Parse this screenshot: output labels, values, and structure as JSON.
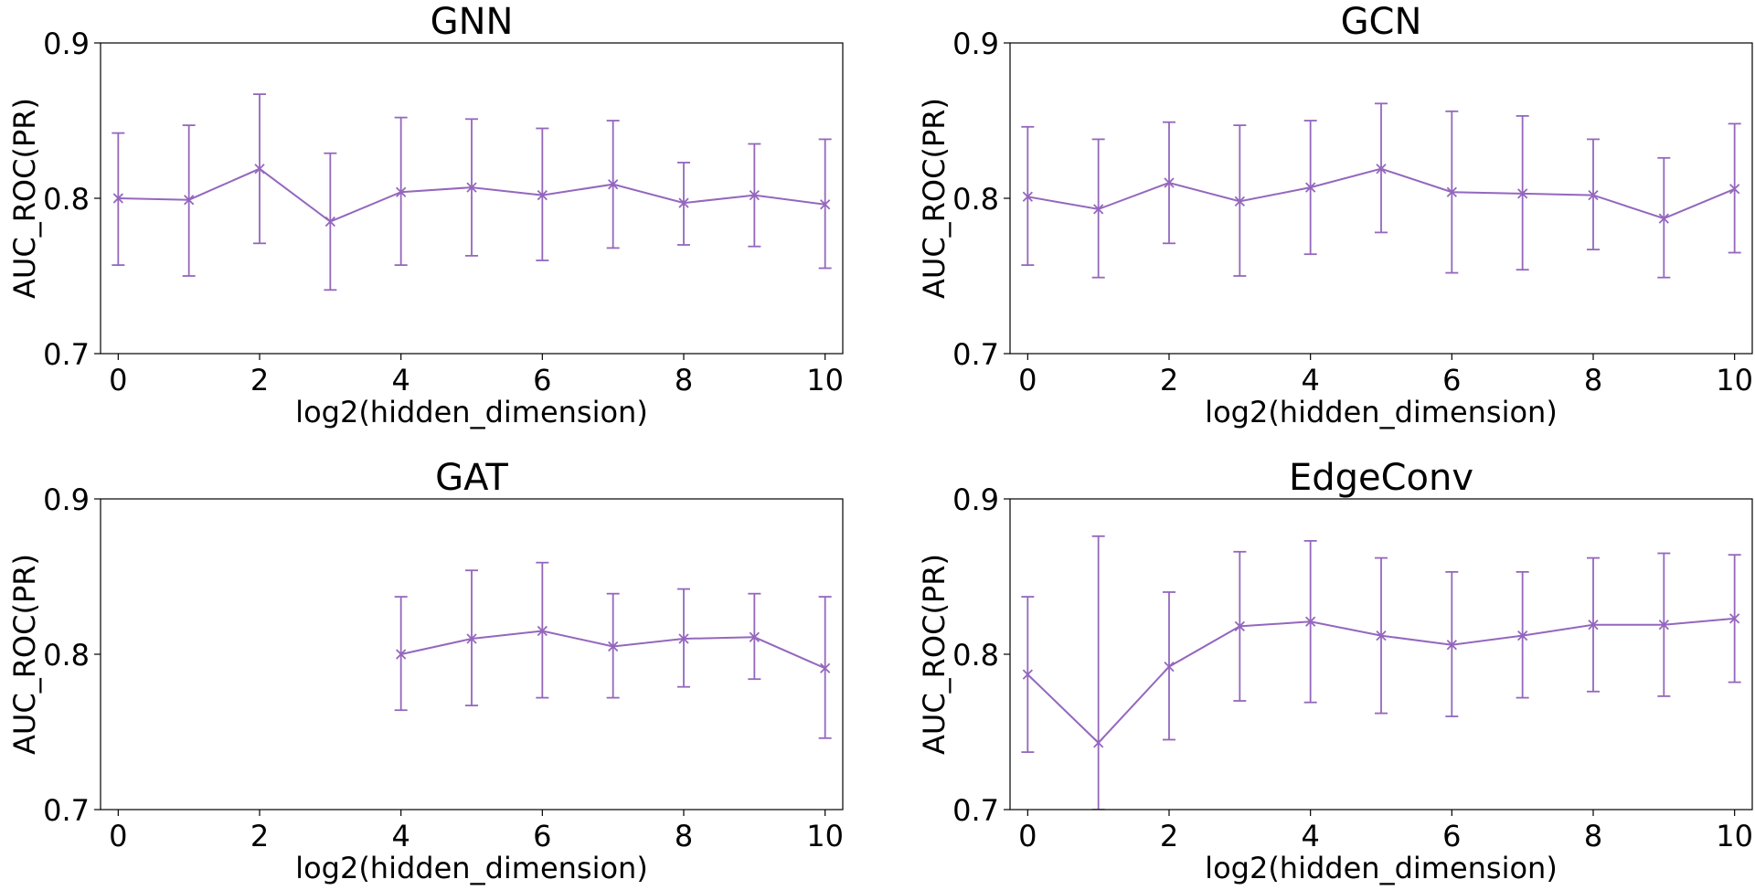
{
  "chart_data": [
    {
      "type": "line",
      "title": "GNN",
      "xlabel": "log2(hidden_dimension)",
      "ylabel": "AUC_ROC(PR)",
      "xlim": [
        -0.25,
        10.25
      ],
      "ylim": [
        0.7,
        0.9
      ],
      "xticks": [
        "0",
        "2",
        "4",
        "6",
        "8",
        "10"
      ],
      "yticks": [
        "0.7",
        "0.8",
        "0.9"
      ],
      "color": "#9467bd",
      "grid": false,
      "marker": "x",
      "x": [
        0,
        1,
        2,
        3,
        4,
        5,
        6,
        7,
        8,
        9,
        10
      ],
      "y": [
        0.8,
        0.799,
        0.819,
        0.785,
        0.804,
        0.807,
        0.802,
        0.809,
        0.797,
        0.802,
        0.796
      ],
      "err_low": [
        0.757,
        0.75,
        0.771,
        0.741,
        0.757,
        0.763,
        0.76,
        0.768,
        0.77,
        0.769,
        0.755
      ],
      "err_high": [
        0.842,
        0.847,
        0.867,
        0.829,
        0.852,
        0.851,
        0.845,
        0.85,
        0.823,
        0.835,
        0.838
      ]
    },
    {
      "type": "line",
      "title": "GCN",
      "xlabel": "log2(hidden_dimension)",
      "ylabel": "AUC_ROC(PR)",
      "xlim": [
        -0.25,
        10.25
      ],
      "ylim": [
        0.7,
        0.9
      ],
      "xticks": [
        "0",
        "2",
        "4",
        "6",
        "8",
        "10"
      ],
      "yticks": [
        "0.7",
        "0.8",
        "0.9"
      ],
      "color": "#9467bd",
      "grid": false,
      "marker": "x",
      "x": [
        0,
        1,
        2,
        3,
        4,
        5,
        6,
        7,
        8,
        9,
        10
      ],
      "y": [
        0.801,
        0.793,
        0.81,
        0.798,
        0.807,
        0.819,
        0.804,
        0.803,
        0.802,
        0.787,
        0.806
      ],
      "err_low": [
        0.757,
        0.749,
        0.771,
        0.75,
        0.764,
        0.778,
        0.752,
        0.754,
        0.767,
        0.749,
        0.765
      ],
      "err_high": [
        0.846,
        0.838,
        0.849,
        0.847,
        0.85,
        0.861,
        0.856,
        0.853,
        0.838,
        0.826,
        0.848
      ]
    },
    {
      "type": "line",
      "title": "GAT",
      "xlabel": "log2(hidden_dimension)",
      "ylabel": "AUC_ROC(PR)",
      "xlim": [
        -0.25,
        10.25
      ],
      "ylim": [
        0.7,
        0.9
      ],
      "xticks": [
        "0",
        "2",
        "4",
        "6",
        "8",
        "10"
      ],
      "yticks": [
        "0.7",
        "0.8",
        "0.9"
      ],
      "color": "#9467bd",
      "grid": false,
      "marker": "x",
      "x": [
        4,
        5,
        6,
        7,
        8,
        9,
        10
      ],
      "y": [
        0.8,
        0.81,
        0.815,
        0.805,
        0.81,
        0.811,
        0.791
      ],
      "err_low": [
        0.764,
        0.767,
        0.772,
        0.772,
        0.779,
        0.784,
        0.746
      ],
      "err_high": [
        0.837,
        0.854,
        0.859,
        0.839,
        0.842,
        0.839,
        0.837
      ]
    },
    {
      "type": "line",
      "title": "EdgeConv",
      "xlabel": "log2(hidden_dimension)",
      "ylabel": "AUC_ROC(PR)",
      "xlim": [
        -0.25,
        10.25
      ],
      "ylim": [
        0.7,
        0.9
      ],
      "xticks": [
        "0",
        "2",
        "4",
        "6",
        "8",
        "10"
      ],
      "yticks": [
        "0.7",
        "0.8",
        "0.9"
      ],
      "color": "#9467bd",
      "grid": false,
      "marker": "x",
      "x": [
        0,
        1,
        2,
        3,
        4,
        5,
        6,
        7,
        8,
        9,
        10
      ],
      "y": [
        0.787,
        0.743,
        0.792,
        0.818,
        0.821,
        0.812,
        0.806,
        0.812,
        0.819,
        0.819,
        0.823
      ],
      "err_low": [
        0.737,
        0.7,
        0.745,
        0.77,
        0.769,
        0.762,
        0.76,
        0.772,
        0.776,
        0.773,
        0.782
      ],
      "err_high": [
        0.837,
        0.876,
        0.84,
        0.866,
        0.873,
        0.862,
        0.853,
        0.853,
        0.862,
        0.865,
        0.864
      ]
    }
  ]
}
